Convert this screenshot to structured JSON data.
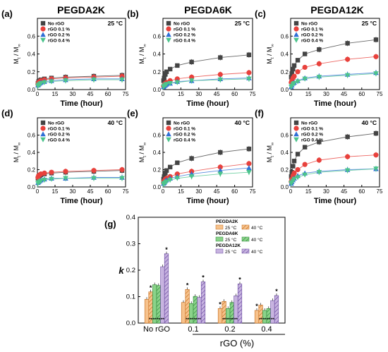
{
  "titles": {
    "col1": "PEGDA2K",
    "col2": "PEGDA6K",
    "col3": "PEGDA12K"
  },
  "common": {
    "xlabel": "Time (hour)",
    "ylabel_main": "M",
    "ylabel_sub_t": "t",
    "ylabel_sub_inf": "∞",
    "xticks": [
      "0",
      "15",
      "30",
      "45",
      "60",
      "75"
    ],
    "legend": [
      "No rGO",
      "rGO 0.1 %",
      "rGO 0.2 %",
      "rGO 0.4 %"
    ],
    "series_colors": [
      "#444444",
      "#e8413c",
      "#2f6fd6",
      "#4cc48c"
    ]
  },
  "chart_data": [
    {
      "panel": "(a)",
      "type": "scatter",
      "title": "PEGDA2K",
      "temperature": "25 °C",
      "xlim": [
        0,
        75
      ],
      "ylim": [
        0,
        0.8
      ],
      "yticks": [
        "0.0",
        "0.2",
        "0.4",
        "0.6"
      ],
      "x": [
        0.5,
        1,
        2,
        3,
        6,
        12,
        24,
        48,
        72
      ],
      "series": [
        {
          "name": "No rGO",
          "values": [
            0.07,
            0.09,
            0.1,
            0.11,
            0.12,
            0.13,
            0.14,
            0.15,
            0.16
          ]
        },
        {
          "name": "rGO 0.1 %",
          "values": [
            0.06,
            0.08,
            0.09,
            0.1,
            0.11,
            0.12,
            0.13,
            0.14,
            0.15
          ]
        },
        {
          "name": "rGO 0.2 %",
          "values": [
            0.05,
            0.06,
            0.07,
            0.08,
            0.09,
            0.1,
            0.11,
            0.12,
            0.12
          ]
        },
        {
          "name": "rGO 0.4 %",
          "values": [
            0.04,
            0.05,
            0.06,
            0.07,
            0.08,
            0.09,
            0.1,
            0.11,
            0.11
          ]
        }
      ]
    },
    {
      "panel": "(b)",
      "type": "scatter",
      "title": "PEGDA6K",
      "temperature": "25 °C",
      "xlim": [
        0,
        75
      ],
      "ylim": [
        0,
        0.8
      ],
      "yticks": [
        "0.0",
        "0.2",
        "0.4",
        "0.6"
      ],
      "x": [
        0.5,
        1,
        2,
        3,
        6,
        12,
        24,
        48,
        72
      ],
      "series": [
        {
          "name": "No rGO",
          "values": [
            0.1,
            0.13,
            0.17,
            0.2,
            0.23,
            0.27,
            0.31,
            0.36,
            0.39
          ]
        },
        {
          "name": "rGO 0.1 %",
          "values": [
            0.04,
            0.05,
            0.07,
            0.08,
            0.1,
            0.12,
            0.14,
            0.17,
            0.19
          ]
        },
        {
          "name": "rGO 0.2 %",
          "values": [
            0.03,
            0.04,
            0.05,
            0.06,
            0.07,
            0.09,
            0.1,
            0.12,
            0.13
          ]
        },
        {
          "name": "rGO 0.4 %",
          "values": [
            0.03,
            0.04,
            0.05,
            0.06,
            0.07,
            0.08,
            0.1,
            0.11,
            0.12
          ]
        }
      ]
    },
    {
      "panel": "(c)",
      "type": "scatter",
      "title": "PEGDA12K",
      "temperature": "25 °C",
      "xlim": [
        0,
        75
      ],
      "ylim": [
        0,
        0.8
      ],
      "yticks": [
        "0.0",
        "0.2",
        "0.4",
        "0.6"
      ],
      "x": [
        0.5,
        1,
        2,
        3,
        6,
        12,
        24,
        48,
        72
      ],
      "series": [
        {
          "name": "No rGO",
          "values": [
            0.14,
            0.18,
            0.23,
            0.27,
            0.33,
            0.4,
            0.45,
            0.52,
            0.56
          ]
        },
        {
          "name": "rGO 0.1 %",
          "values": [
            0.08,
            0.1,
            0.13,
            0.15,
            0.2,
            0.25,
            0.29,
            0.34,
            0.37
          ]
        },
        {
          "name": "rGO 0.2 %",
          "values": [
            0.03,
            0.05,
            0.07,
            0.08,
            0.1,
            0.13,
            0.15,
            0.17,
            0.19
          ]
        },
        {
          "name": "rGO 0.4 %",
          "values": [
            0.03,
            0.04,
            0.06,
            0.07,
            0.09,
            0.12,
            0.14,
            0.16,
            0.18
          ]
        }
      ]
    },
    {
      "panel": "(d)",
      "type": "scatter",
      "temperature": "40 °C",
      "xlim": [
        0,
        75
      ],
      "ylim": [
        0,
        0.8
      ],
      "yticks": [
        "0.0",
        "0.2",
        "0.4",
        "0.6"
      ],
      "x": [
        0.5,
        1,
        2,
        3,
        6,
        12,
        24,
        48,
        72
      ],
      "series": [
        {
          "name": "No rGO",
          "values": [
            0.1,
            0.12,
            0.13,
            0.14,
            0.15,
            0.16,
            0.17,
            0.18,
            0.19
          ]
        },
        {
          "name": "rGO 0.1 %",
          "values": [
            0.11,
            0.13,
            0.14,
            0.15,
            0.16,
            0.17,
            0.18,
            0.19,
            0.2
          ]
        },
        {
          "name": "rGO 0.2 %",
          "values": [
            0.05,
            0.06,
            0.07,
            0.08,
            0.09,
            0.1,
            0.1,
            0.11,
            0.11
          ]
        },
        {
          "name": "rGO 0.4 %",
          "values": [
            0.04,
            0.05,
            0.06,
            0.07,
            0.08,
            0.09,
            0.1,
            0.1,
            0.1
          ]
        }
      ]
    },
    {
      "panel": "(e)",
      "type": "scatter",
      "temperature": "40 °C",
      "xlim": [
        0,
        75
      ],
      "ylim": [
        0,
        0.8
      ],
      "yticks": [
        "0.0",
        "0.2",
        "0.4",
        "0.6"
      ],
      "x": [
        0.5,
        1,
        2,
        3,
        6,
        12,
        24,
        48,
        72
      ],
      "series": [
        {
          "name": "No rGO",
          "values": [
            0.09,
            0.12,
            0.16,
            0.19,
            0.23,
            0.28,
            0.33,
            0.4,
            0.44
          ]
        },
        {
          "name": "rGO 0.1 %",
          "values": [
            0.05,
            0.07,
            0.09,
            0.1,
            0.12,
            0.15,
            0.18,
            0.23,
            0.27
          ]
        },
        {
          "name": "rGO 0.2 %",
          "values": [
            0.04,
            0.05,
            0.07,
            0.08,
            0.1,
            0.12,
            0.15,
            0.19,
            0.22
          ]
        },
        {
          "name": "rGO 0.4 %",
          "values": [
            0.03,
            0.04,
            0.05,
            0.06,
            0.08,
            0.1,
            0.12,
            0.15,
            0.17
          ]
        }
      ]
    },
    {
      "panel": "(f)",
      "type": "scatter",
      "temperature": "40 °C",
      "xlim": [
        0,
        75
      ],
      "ylim": [
        0,
        0.8
      ],
      "yticks": [
        "0.0",
        "0.2",
        "0.4",
        "0.6"
      ],
      "x": [
        0.5,
        1,
        2,
        3,
        6,
        12,
        24,
        48,
        72
      ],
      "series": [
        {
          "name": "No rGO",
          "values": [
            0.12,
            0.17,
            0.24,
            0.3,
            0.38,
            0.46,
            0.52,
            0.58,
            0.62
          ]
        },
        {
          "name": "rGO 0.1 %",
          "values": [
            0.06,
            0.09,
            0.13,
            0.16,
            0.2,
            0.26,
            0.31,
            0.35,
            0.37
          ]
        },
        {
          "name": "rGO 0.2 %",
          "values": [
            0.04,
            0.06,
            0.08,
            0.1,
            0.13,
            0.16,
            0.18,
            0.2,
            0.21
          ]
        },
        {
          "name": "rGO 0.4 %",
          "values": [
            0.04,
            0.05,
            0.07,
            0.09,
            0.11,
            0.14,
            0.17,
            0.19,
            0.21
          ]
        }
      ]
    },
    {
      "panel": "(g)",
      "type": "bar",
      "ylabel": "k",
      "xlabel": "rGO (%)",
      "ylim": [
        0,
        0.4
      ],
      "yticks": [
        "0.0",
        "0.1",
        "0.2",
        "0.3",
        "0.4"
      ],
      "categories": [
        "No rGO",
        "0.1",
        "0.2",
        "0.4"
      ],
      "legend_groups": [
        "PEGDA2K",
        "PEGDA6K",
        "PEGDA12K"
      ],
      "legend_labels": [
        "25 °C",
        "40 °C"
      ],
      "series": [
        {
          "group": "PEGDA2K",
          "temp": "25 °C",
          "values": [
            0.09,
            0.078,
            0.055,
            0.048
          ],
          "stars": [
            "",
            "",
            "*",
            "*"
          ],
          "base_stars": [
            "",
            "",
            "",
            ""
          ]
        },
        {
          "group": "PEGDA2K",
          "temp": "40 °C",
          "values": [
            0.118,
            0.127,
            0.082,
            0.068
          ],
          "stars": [
            "*",
            "*",
            "",
            ""
          ],
          "base_stars": [
            "**",
            "**",
            "**",
            "**"
          ]
        },
        {
          "group": "PEGDA6K",
          "temp": "25 °C",
          "values": [
            0.145,
            0.074,
            0.055,
            0.048
          ],
          "stars": [
            "",
            "",
            "",
            ""
          ],
          "base_stars": [
            "**",
            "**",
            "**",
            "**"
          ]
        },
        {
          "group": "PEGDA6K",
          "temp": "40 °C",
          "values": [
            0.142,
            0.101,
            0.078,
            0.055
          ],
          "stars": [
            "",
            "",
            "",
            ""
          ],
          "base_stars": [
            "**",
            "**",
            "**",
            "**"
          ]
        },
        {
          "group": "PEGDA12K",
          "temp": "25 °C",
          "values": [
            0.213,
            0.097,
            0.103,
            0.085
          ],
          "stars": [
            "",
            "",
            "",
            ""
          ],
          "base_stars": [
            "**",
            "**",
            "**",
            "**"
          ]
        },
        {
          "group": "PEGDA12K",
          "temp": "40 °C",
          "values": [
            0.262,
            0.156,
            0.148,
            0.104
          ],
          "stars": [
            "*",
            "*",
            "*",
            "*"
          ],
          "base_stars": [
            "",
            "",
            "",
            ""
          ]
        }
      ],
      "colors": {
        "PEGDA2K": "#f6c28c",
        "PEGDA6K": "#8bd38a",
        "PEGDA12K": "#c7b3e0"
      },
      "hatch_colors": {
        "PEGDA2K": "#c66b1a",
        "PEGDA6K": "#2f8a3a",
        "PEGDA12K": "#6a4aa0"
      }
    }
  ]
}
